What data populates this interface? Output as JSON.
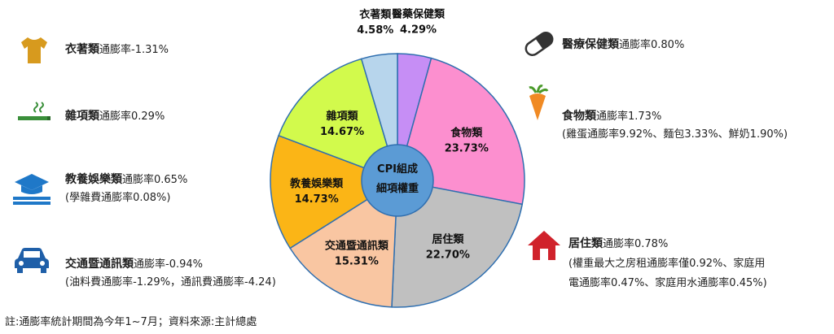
{
  "chart_data": {
    "type": "pie",
    "center_label": [
      "CPI組成",
      "細項權重"
    ],
    "slices": [
      {
        "name": "醫藥保健類",
        "value": 4.29,
        "value_label": "4.29%",
        "color": "#c68ef5"
      },
      {
        "name": "食物類",
        "value": 23.73,
        "value_label": "23.73%",
        "color": "#fc8fcf"
      },
      {
        "name": "居住類",
        "value": 22.7,
        "value_label": "22.70%",
        "color": "#c0c0c0"
      },
      {
        "name": "交通暨通訊類",
        "value": 15.31,
        "value_label": "15.31%",
        "color": "#f9c6a2"
      },
      {
        "name": "教養娛樂類",
        "value": 14.73,
        "value_label": "14.73%",
        "color": "#fbb516"
      },
      {
        "name": "雜項類",
        "value": 14.67,
        "value_label": "14.67%",
        "color": "#d2fa4c"
      },
      {
        "name": "衣著類",
        "value": 4.58,
        "value_label": "4.58%",
        "color": "#b7d5ec"
      }
    ],
    "center_color": "#5b9bd5"
  },
  "callouts": {
    "clothing": {
      "title": "衣著類",
      "rate": "通膨率-1.31%",
      "icon": "shirt-icon",
      "color": "#d79a1e"
    },
    "misc": {
      "title": "雜項類",
      "rate": "通膨率0.29%",
      "icon": "cigarette-icon",
      "color": "#3a8f3a"
    },
    "education": {
      "title": "教養娛樂類",
      "rate": "通膨率0.65%",
      "detail": "(學雜費通膨率0.08%)",
      "icon": "graduation-cap-icon",
      "color": "#1f78c8"
    },
    "transport": {
      "title": "交通暨通訊類",
      "rate": "通膨率-0.94%",
      "detail": "(油料費通膨率-1.29%，通訊費通膨率-4.24)",
      "icon": "car-icon",
      "color": "#1f5fa8"
    },
    "medical": {
      "title": "醫療保健類",
      "rate": "通膨率0.80%",
      "icon": "pill-icon",
      "color": "#333333"
    },
    "food": {
      "title": "食物類",
      "rate": "通膨率1.73%",
      "detail": "(雞蛋通膨率9.92%、麵包3.33%、鮮奶1.90%)",
      "icon": "carrot-icon",
      "color": "#f08a24"
    },
    "housing": {
      "title": "居住類",
      "rate": "通膨率0.78%",
      "detail1": "(權重最大之房租通膨率僅0.92%、家庭用",
      "detail2": "電通膨率0.47%、家庭用水通膨率0.45%)",
      "icon": "house-icon",
      "color": "#d0222b"
    }
  },
  "footnote": "註:通膨率統計期間為今年1~7月；資料來源:主計總處"
}
